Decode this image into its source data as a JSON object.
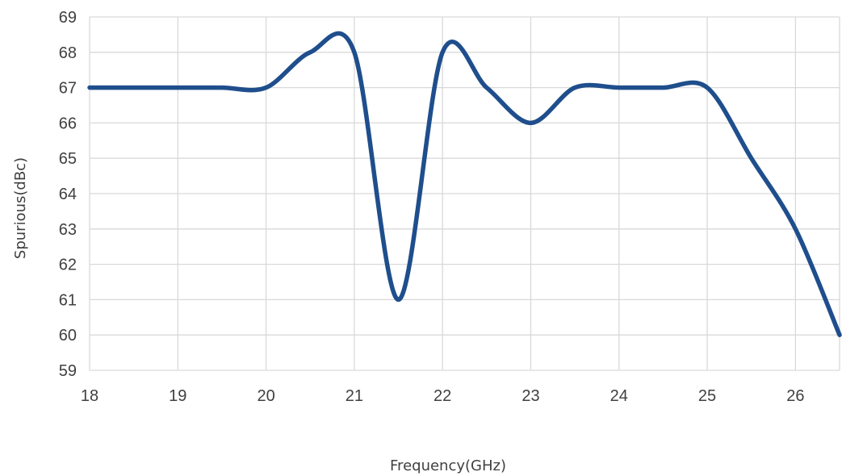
{
  "chart_data": {
    "type": "line",
    "title": "",
    "xlabel": "Frequency(GHz)",
    "ylabel": "Spurious(dBc)",
    "xlim": [
      18,
      26.5
    ],
    "ylim": [
      59,
      69
    ],
    "xticks": [
      18,
      19,
      20,
      21,
      22,
      23,
      24,
      25,
      26
    ],
    "yticks": [
      59,
      60,
      61,
      62,
      63,
      64,
      65,
      66,
      67,
      68,
      69
    ],
    "grid": true,
    "legend": "none",
    "series": [
      {
        "color": "#1f4e8c",
        "x": [
          18,
          18.5,
          19,
          19.5,
          20,
          20.5,
          21,
          21.5,
          22,
          22.5,
          23,
          23.5,
          24,
          24.5,
          25,
          25.5,
          26,
          26.5
        ],
        "y": [
          67,
          67,
          67,
          67,
          67,
          68,
          68,
          61,
          68,
          67,
          66,
          67,
          67,
          67,
          67,
          65,
          63,
          60
        ]
      }
    ]
  }
}
